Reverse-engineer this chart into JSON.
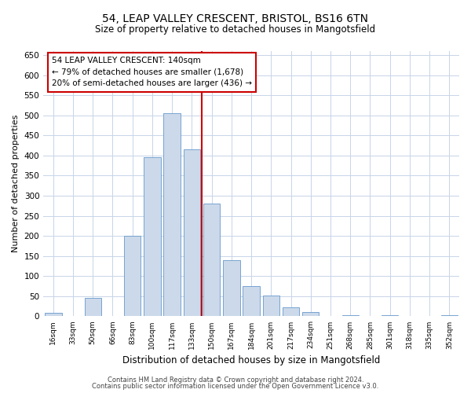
{
  "title": "54, LEAP VALLEY CRESCENT, BRISTOL, BS16 6TN",
  "subtitle": "Size of property relative to detached houses in Mangotsfield",
  "xlabel": "Distribution of detached houses by size in Mangotsfield",
  "ylabel": "Number of detached properties",
  "bar_labels": [
    "16sqm",
    "33sqm",
    "50sqm",
    "66sqm",
    "83sqm",
    "100sqm",
    "117sqm",
    "133sqm",
    "150sqm",
    "167sqm",
    "184sqm",
    "201sqm",
    "217sqm",
    "234sqm",
    "251sqm",
    "268sqm",
    "285sqm",
    "301sqm",
    "318sqm",
    "335sqm",
    "352sqm"
  ],
  "bar_values": [
    8,
    0,
    45,
    0,
    200,
    395,
    505,
    415,
    280,
    140,
    75,
    52,
    22,
    10,
    0,
    2,
    0,
    2,
    0,
    0,
    3
  ],
  "bar_color": "#ccd9ea",
  "bar_edge_color": "#6699cc",
  "vline_color": "#cc0000",
  "annotation_title": "54 LEAP VALLEY CRESCENT: 140sqm",
  "annotation_line1": "← 79% of detached houses are smaller (1,678)",
  "annotation_line2": "20% of semi-detached houses are larger (436) →",
  "annotation_box_color": "#cc0000",
  "ylim": [
    0,
    660
  ],
  "yticks": [
    0,
    50,
    100,
    150,
    200,
    250,
    300,
    350,
    400,
    450,
    500,
    550,
    600,
    650
  ],
  "footer1": "Contains HM Land Registry data © Crown copyright and database right 2024.",
  "footer2": "Contains public sector information licensed under the Open Government Licence v3.0.",
  "bg_color": "#ffffff",
  "grid_color": "#c8d4e8"
}
